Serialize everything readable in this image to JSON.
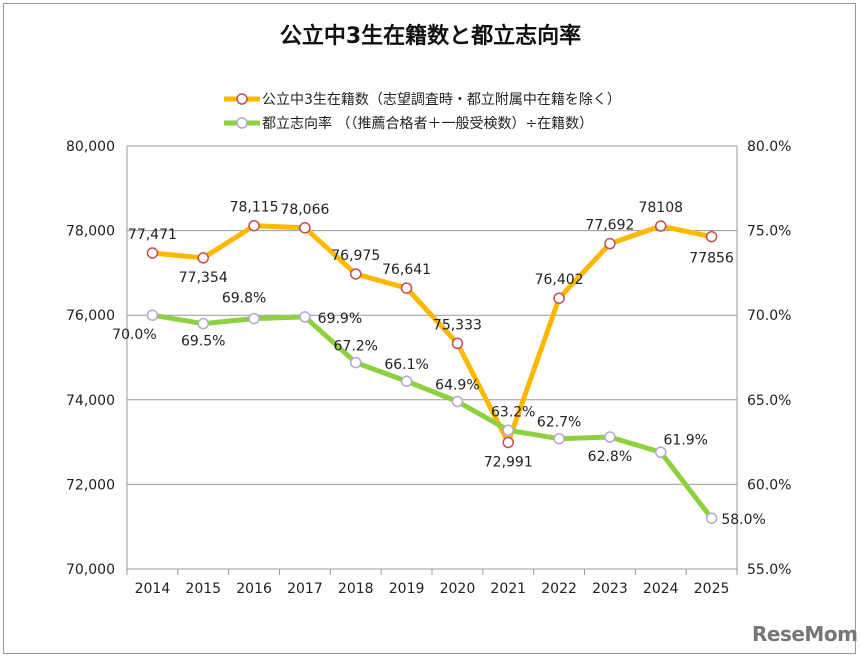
{
  "chart_data": {
    "type": "line",
    "title": "公立中3生在籍数と都立志向率",
    "categories": [
      "2014",
      "2015",
      "2016",
      "2017",
      "2018",
      "2019",
      "2020",
      "2021",
      "2022",
      "2023",
      "2024",
      "2025"
    ],
    "y_left": {
      "ylim": [
        70000,
        80000
      ],
      "ticks": [
        "70,000",
        "72,000",
        "74,000",
        "76,000",
        "78,000",
        "80,000"
      ]
    },
    "y_right": {
      "ylim": [
        55.0,
        80.0
      ],
      "ticks": [
        "55.0%",
        "60.0%",
        "65.0%",
        "70.0%",
        "75.0%",
        "80.0%"
      ]
    },
    "grid": true,
    "legend_position": "top",
    "series": [
      {
        "name": "公立中3生在籍数（志望調査時・都立附属中在籍を除く）",
        "axis": "left",
        "color": "#FFB800",
        "marker_edge": "#C0504D",
        "values": [
          77471,
          77354,
          78115,
          78066,
          76975,
          76641,
          75333,
          72991,
          76402,
          77692,
          78108,
          77856
        ],
        "labels": [
          "77,471",
          "77,354",
          "78,115",
          "78,066",
          "76,975",
          "76,641",
          "75,333",
          "72,991",
          "76,402",
          "77,692",
          "78108",
          "77856"
        ]
      },
      {
        "name": "都立志向率 （（推薦合格者＋一般受検数）÷在籍数）",
        "axis": "right",
        "color": "#8DD13F",
        "marker_edge": "#B4A7D6",
        "values": [
          70.0,
          69.5,
          69.8,
          69.9,
          67.2,
          66.1,
          64.9,
          63.2,
          62.7,
          62.8,
          61.9,
          58.0
        ],
        "labels": [
          "70.0%",
          "69.5%",
          "69.8%",
          "69.9%",
          "67.2%",
          "66.1%",
          "64.9%",
          "63.2%",
          "62.7%",
          "62.8%",
          "61.9%",
          "58.0%"
        ]
      }
    ]
  },
  "watermark": "ReseMom"
}
